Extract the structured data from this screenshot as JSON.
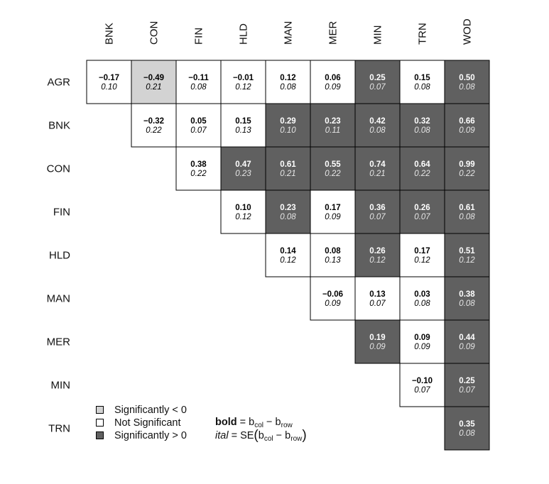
{
  "chart_data": {
    "type": "heatmap",
    "columns": [
      "BNK",
      "CON",
      "FIN",
      "HLD",
      "MAN",
      "MER",
      "MIN",
      "TRN",
      "WOD"
    ],
    "rows": [
      "AGR",
      "BNK",
      "CON",
      "FIN",
      "HLD",
      "MAN",
      "MER",
      "MIN",
      "TRN"
    ],
    "cells": [
      {
        "row": "AGR",
        "col": "BNK",
        "diff": "−0.17",
        "se": "0.10",
        "sig": "none"
      },
      {
        "row": "AGR",
        "col": "CON",
        "diff": "−0.49",
        "se": "0.21",
        "sig": "neg"
      },
      {
        "row": "AGR",
        "col": "FIN",
        "diff": "−0.11",
        "se": "0.08",
        "sig": "none"
      },
      {
        "row": "AGR",
        "col": "HLD",
        "diff": "−0.01",
        "se": "0.12",
        "sig": "none"
      },
      {
        "row": "AGR",
        "col": "MAN",
        "diff": "0.12",
        "se": "0.08",
        "sig": "none"
      },
      {
        "row": "AGR",
        "col": "MER",
        "diff": "0.06",
        "se": "0.09",
        "sig": "none"
      },
      {
        "row": "AGR",
        "col": "MIN",
        "diff": "0.25",
        "se": "0.07",
        "sig": "pos"
      },
      {
        "row": "AGR",
        "col": "TRN",
        "diff": "0.15",
        "se": "0.08",
        "sig": "none"
      },
      {
        "row": "AGR",
        "col": "WOD",
        "diff": "0.50",
        "se": "0.08",
        "sig": "pos"
      },
      {
        "row": "BNK",
        "col": "CON",
        "diff": "−0.32",
        "se": "0.22",
        "sig": "none"
      },
      {
        "row": "BNK",
        "col": "FIN",
        "diff": "0.05",
        "se": "0.07",
        "sig": "none"
      },
      {
        "row": "BNK",
        "col": "HLD",
        "diff": "0.15",
        "se": "0.13",
        "sig": "none"
      },
      {
        "row": "BNK",
        "col": "MAN",
        "diff": "0.29",
        "se": "0.10",
        "sig": "pos"
      },
      {
        "row": "BNK",
        "col": "MER",
        "diff": "0.23",
        "se": "0.11",
        "sig": "pos"
      },
      {
        "row": "BNK",
        "col": "MIN",
        "diff": "0.42",
        "se": "0.08",
        "sig": "pos"
      },
      {
        "row": "BNK",
        "col": "TRN",
        "diff": "0.32",
        "se": "0.08",
        "sig": "pos"
      },
      {
        "row": "BNK",
        "col": "WOD",
        "diff": "0.66",
        "se": "0.09",
        "sig": "pos"
      },
      {
        "row": "CON",
        "col": "FIN",
        "diff": "0.38",
        "se": "0.22",
        "sig": "none"
      },
      {
        "row": "CON",
        "col": "HLD",
        "diff": "0.47",
        "se": "0.23",
        "sig": "pos"
      },
      {
        "row": "CON",
        "col": "MAN",
        "diff": "0.61",
        "se": "0.21",
        "sig": "pos"
      },
      {
        "row": "CON",
        "col": "MER",
        "diff": "0.55",
        "se": "0.22",
        "sig": "pos"
      },
      {
        "row": "CON",
        "col": "MIN",
        "diff": "0.74",
        "se": "0.21",
        "sig": "pos"
      },
      {
        "row": "CON",
        "col": "TRN",
        "diff": "0.64",
        "se": "0.22",
        "sig": "pos"
      },
      {
        "row": "CON",
        "col": "WOD",
        "diff": "0.99",
        "se": "0.22",
        "sig": "pos"
      },
      {
        "row": "FIN",
        "col": "HLD",
        "diff": "0.10",
        "se": "0.12",
        "sig": "none"
      },
      {
        "row": "FIN",
        "col": "MAN",
        "diff": "0.23",
        "se": "0.08",
        "sig": "pos"
      },
      {
        "row": "FIN",
        "col": "MER",
        "diff": "0.17",
        "se": "0.09",
        "sig": "none"
      },
      {
        "row": "FIN",
        "col": "MIN",
        "diff": "0.36",
        "se": "0.07",
        "sig": "pos"
      },
      {
        "row": "FIN",
        "col": "TRN",
        "diff": "0.26",
        "se": "0.07",
        "sig": "pos"
      },
      {
        "row": "FIN",
        "col": "WOD",
        "diff": "0.61",
        "se": "0.08",
        "sig": "pos"
      },
      {
        "row": "HLD",
        "col": "MAN",
        "diff": "0.14",
        "se": "0.12",
        "sig": "none"
      },
      {
        "row": "HLD",
        "col": "MER",
        "diff": "0.08",
        "se": "0.13",
        "sig": "none"
      },
      {
        "row": "HLD",
        "col": "MIN",
        "diff": "0.26",
        "se": "0.12",
        "sig": "pos"
      },
      {
        "row": "HLD",
        "col": "TRN",
        "diff": "0.17",
        "se": "0.12",
        "sig": "none"
      },
      {
        "row": "HLD",
        "col": "WOD",
        "diff": "0.51",
        "se": "0.12",
        "sig": "pos"
      },
      {
        "row": "MAN",
        "col": "MER",
        "diff": "−0.06",
        "se": "0.09",
        "sig": "none"
      },
      {
        "row": "MAN",
        "col": "MIN",
        "diff": "0.13",
        "se": "0.07",
        "sig": "none"
      },
      {
        "row": "MAN",
        "col": "TRN",
        "diff": "0.03",
        "se": "0.08",
        "sig": "none"
      },
      {
        "row": "MAN",
        "col": "WOD",
        "diff": "0.38",
        "se": "0.08",
        "sig": "pos"
      },
      {
        "row": "MER",
        "col": "MIN",
        "diff": "0.19",
        "se": "0.09",
        "sig": "pos"
      },
      {
        "row": "MER",
        "col": "TRN",
        "diff": "0.09",
        "se": "0.09",
        "sig": "none"
      },
      {
        "row": "MER",
        "col": "WOD",
        "diff": "0.44",
        "se": "0.09",
        "sig": "pos"
      },
      {
        "row": "MIN",
        "col": "TRN",
        "diff": "−0.10",
        "se": "0.07",
        "sig": "none"
      },
      {
        "row": "MIN",
        "col": "WOD",
        "diff": "0.25",
        "se": "0.07",
        "sig": "pos"
      },
      {
        "row": "TRN",
        "col": "WOD",
        "diff": "0.35",
        "se": "0.08",
        "sig": "pos"
      }
    ],
    "colors": {
      "neg": "#d3d3d3",
      "none": "#ffffff",
      "pos": "#606060",
      "border": "#000000"
    }
  },
  "legend": {
    "items": [
      {
        "label": "Significantly < 0",
        "color": "#d3d3d3"
      },
      {
        "label": "Not Significant",
        "color": "#ffffff"
      },
      {
        "label": "Significantly > 0",
        "color": "#606060"
      }
    ]
  },
  "formula": {
    "bold_term": "bold",
    "ital_term": "ital",
    "equals": "=",
    "b": "b",
    "col_sub": "col",
    "row_sub": "row",
    "minus": "−",
    "se": "SE",
    "open_paren": "(",
    "close_paren": ")"
  }
}
